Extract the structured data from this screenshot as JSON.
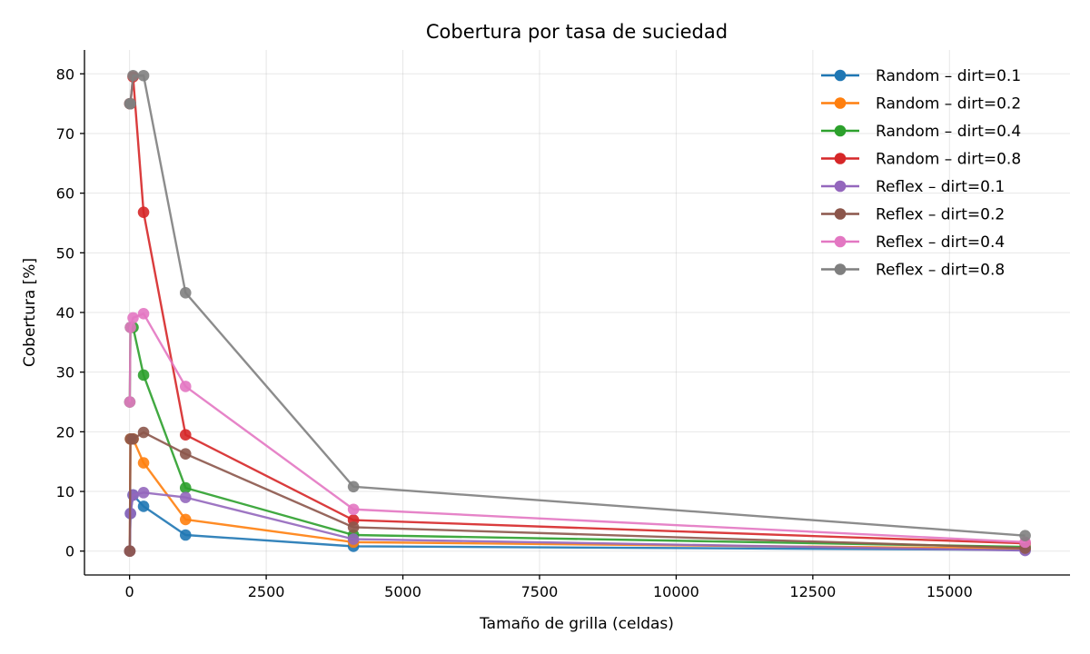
{
  "chart_data": {
    "type": "line",
    "title": "Cobertura por tasa de suciedad",
    "xlabel": "Tamaño de grilla (celdas)",
    "ylabel": "Cobertura [%]",
    "xlim": [
      -825,
      17205
    ],
    "ylim": [
      -4,
      84
    ],
    "xticks": [
      0,
      2500,
      5000,
      7500,
      10000,
      12500,
      15000
    ],
    "yticks": [
      0,
      10,
      20,
      30,
      40,
      50,
      60,
      70,
      80
    ],
    "grid": true,
    "legend_position": "top-right",
    "x": [
      4,
      16,
      64,
      256,
      1024,
      4096,
      16384
    ],
    "series": [
      {
        "name": "Random – dirt=0.1",
        "color": "#1f77b4",
        "values": [
          0,
          6.3,
          9.4,
          7.5,
          2.7,
          0.8,
          0.2
        ]
      },
      {
        "name": "Random – dirt=0.2",
        "color": "#ff7f0e",
        "values": [
          0,
          18.8,
          18.8,
          14.8,
          5.3,
          1.5,
          0.4
        ]
      },
      {
        "name": "Random – dirt=0.4",
        "color": "#2ca02c",
        "values": [
          25,
          37.5,
          37.5,
          29.5,
          10.6,
          2.7,
          0.7
        ]
      },
      {
        "name": "Random – dirt=0.8",
        "color": "#d62728",
        "values": [
          75,
          75,
          79.5,
          56.8,
          19.5,
          5.2,
          1.3
        ]
      },
      {
        "name": "Reflex – dirt=0.1",
        "color": "#9467bd",
        "values": [
          0,
          6.3,
          9.4,
          9.8,
          9.0,
          2.0,
          0.1
        ]
      },
      {
        "name": "Reflex – dirt=0.2",
        "color": "#8c564b",
        "values": [
          0,
          18.8,
          18.8,
          19.9,
          16.3,
          4.0,
          0.5
        ]
      },
      {
        "name": "Reflex – dirt=0.4",
        "color": "#e377c2",
        "values": [
          25,
          37.5,
          39.1,
          39.8,
          27.6,
          7.0,
          1.5
        ]
      },
      {
        "name": "Reflex – dirt=0.8",
        "color": "#7f7f7f",
        "values": [
          75,
          75,
          79.7,
          79.7,
          43.3,
          10.8,
          2.6
        ]
      }
    ]
  }
}
